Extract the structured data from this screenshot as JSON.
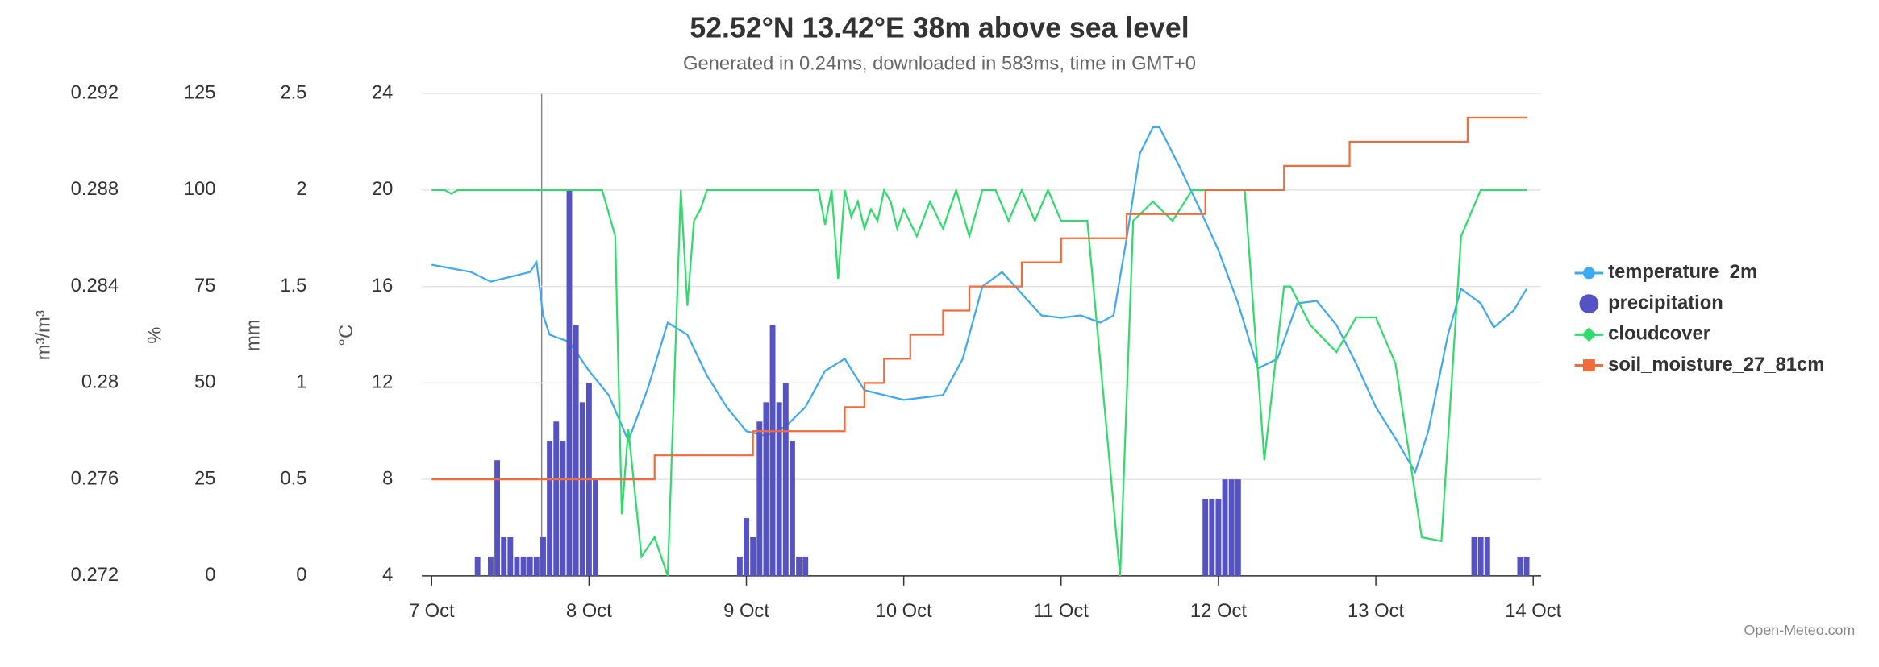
{
  "chart_data": {
    "type": "line",
    "title": "52.52°N 13.42°E 38m above sea level",
    "subtitle": "Generated in 0.24ms, downloaded in 583ms, time in GMT+0",
    "credit": "Open-Meteo.com",
    "xlim": [
      -1.5,
      169.2
    ],
    "xticks": [
      {
        "value": 0,
        "label": "7 Oct"
      },
      {
        "value": 24,
        "label": "8 Oct"
      },
      {
        "value": 48,
        "label": "9 Oct"
      },
      {
        "value": 72,
        "label": "10 Oct"
      },
      {
        "value": 96,
        "label": "11 Oct"
      },
      {
        "value": 120,
        "label": "12 Oct"
      },
      {
        "value": 144,
        "label": "13 Oct"
      },
      {
        "value": 168,
        "label": "14 Oct"
      }
    ],
    "ylabel": "°C",
    "ylim": [
      4,
      24
    ],
    "yticks": [
      4,
      8,
      12,
      16,
      20,
      24
    ],
    "y2label": "mm",
    "y2lim": [
      0,
      2.5
    ],
    "y2ticks": [
      0,
      0.5,
      1,
      1.5,
      2,
      2.5
    ],
    "y3label": "%",
    "y3lim": [
      0,
      125
    ],
    "y3ticks": [
      0,
      25,
      50,
      75,
      100,
      125
    ],
    "y4label": "m³/m³",
    "y4lim": [
      0.272,
      0.292
    ],
    "y4ticks": [
      0.272,
      0.276,
      0.28,
      0.284,
      0.288,
      0.292
    ],
    "grid": true,
    "legend": "right",
    "series": [
      {
        "name": "temperature_2m",
        "type": "line",
        "axis": "y",
        "color": "#3fa9f0",
        "marker": "circle",
        "x": [
          0,
          6,
          9,
          12,
          15,
          16,
          17,
          18,
          21,
          24,
          27,
          30,
          33,
          36,
          39,
          42,
          45,
          48,
          51,
          54,
          57,
          60,
          63,
          66,
          69,
          72,
          75,
          78,
          81,
          84,
          87,
          90,
          93,
          96,
          99,
          102,
          104,
          106,
          108,
          110,
          111,
          114,
          117,
          120,
          123,
          126,
          129,
          132,
          135,
          138,
          141,
          144,
          147,
          150,
          152,
          155,
          157,
          160,
          162,
          165,
          167
        ],
        "values": [
          16.9,
          16.6,
          16.2,
          16.4,
          16.6,
          17.0,
          14.8,
          14.0,
          13.7,
          12.5,
          11.5,
          9.6,
          11.8,
          14.5,
          14.0,
          12.3,
          11.0,
          10.0,
          9.8,
          10.2,
          11.0,
          12.5,
          13.0,
          11.7,
          11.5,
          11.3,
          11.4,
          11.5,
          13.0,
          16.0,
          16.6,
          15.7,
          14.8,
          14.7,
          14.8,
          14.5,
          14.8,
          18.0,
          21.5,
          22.6,
          22.6,
          21.0,
          19.3,
          17.5,
          15.3,
          12.6,
          13.0,
          15.3,
          15.4,
          14.4,
          12.8,
          11.0,
          9.7,
          8.3,
          10.0,
          14.0,
          15.9,
          15.3,
          14.3,
          15.0,
          15.9
        ]
      },
      {
        "name": "precipitation",
        "type": "bar",
        "axis": "y2",
        "color": "#5552c4",
        "marker": "circle",
        "x": [
          7,
          9,
          10,
          11,
          12,
          13,
          14,
          15,
          16,
          17,
          18,
          19,
          20,
          21,
          22,
          23,
          24,
          25,
          47,
          48,
          49,
          50,
          51,
          52,
          53,
          54,
          55,
          56,
          57,
          118,
          119,
          120,
          121,
          122,
          123,
          159,
          160,
          161,
          166,
          167
        ],
        "values": [
          0.1,
          0.1,
          0.6,
          0.2,
          0.2,
          0.1,
          0.1,
          0.1,
          0.1,
          0.2,
          0.7,
          0.8,
          0.7,
          2.0,
          1.3,
          0.9,
          1.0,
          0.5,
          0.1,
          0.3,
          0.2,
          0.8,
          0.9,
          1.3,
          0.9,
          1.0,
          0.7,
          0.1,
          0.1,
          0.4,
          0.4,
          0.4,
          0.5,
          0.5,
          0.5,
          0.2,
          0.2,
          0.2,
          0.1,
          0.1
        ]
      },
      {
        "name": "cloudcover",
        "type": "line",
        "axis": "y3",
        "color": "#2edb6b",
        "marker": "diamond",
        "x": [
          0,
          2,
          3,
          4,
          26,
          28,
          29,
          30,
          32,
          34,
          36,
          38,
          39,
          40,
          41,
          42,
          59,
          60,
          61,
          62,
          63,
          64,
          65,
          66,
          67,
          68,
          69,
          70,
          71,
          72,
          74,
          76,
          78,
          80,
          82,
          84,
          86,
          88,
          90,
          92,
          94,
          96,
          100,
          105,
          107,
          110,
          113,
          116,
          124,
          127,
          130,
          131,
          134,
          138,
          141,
          144,
          147,
          151,
          154,
          157,
          160,
          167
        ],
        "values": [
          100,
          100,
          99,
          100,
          100,
          88,
          16,
          38,
          5,
          10,
          0,
          100,
          70,
          92,
          95,
          100,
          100,
          91,
          100,
          77,
          100,
          93,
          97,
          90,
          95,
          92,
          100,
          97,
          90,
          95,
          88,
          97,
          90,
          100,
          88,
          100,
          100,
          92,
          100,
          92,
          100,
          92,
          92,
          0,
          92,
          97,
          92,
          100,
          100,
          30,
          75,
          75,
          65,
          58,
          67,
          67,
          55,
          10,
          9,
          88,
          100,
          100
        ]
      },
      {
        "name": "soil_moisture_27_81cm",
        "type": "step",
        "axis": "y4",
        "color": "#f26b3a",
        "marker": "square",
        "x": [
          0,
          34,
          49,
          63,
          66,
          69,
          73,
          78,
          82,
          90,
          96,
          106,
          118,
          130,
          140,
          158,
          167
        ],
        "values": [
          0.276,
          0.277,
          0.278,
          0.279,
          0.28,
          0.281,
          0.282,
          0.283,
          0.284,
          0.285,
          0.286,
          0.287,
          0.288,
          0.289,
          0.29,
          0.291,
          0.291
        ]
      }
    ]
  }
}
